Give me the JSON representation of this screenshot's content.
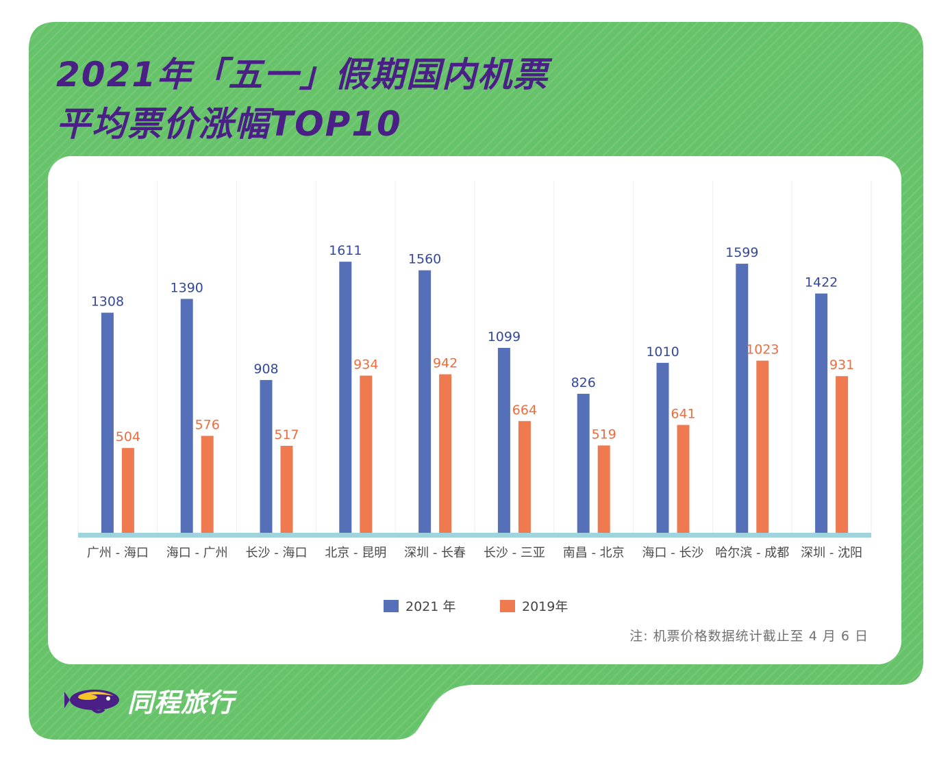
{
  "title": {
    "line1": "2021年「五一」假期国内机票",
    "line2": "平均票价涨幅TOP10"
  },
  "note": "注:  机票价格数据统计截止至 4 月 6 日",
  "brand": {
    "name": "同程旅行",
    "icon": "fish-logo-icon"
  },
  "colors": {
    "background": "#67c36a",
    "title": "#4a1f86",
    "series_2021": "#5570b8",
    "series_2019": "#f07a50",
    "label_2021": "#34489a",
    "label_2019": "#ee6c3e",
    "baseline": "#9fd3de"
  },
  "chart_data": {
    "type": "bar",
    "categories": [
      "广州 - 海口",
      "海口 - 广州",
      "长沙 - 海口",
      "北京 - 昆明",
      "深圳 - 长春",
      "长沙 - 三亚",
      "南昌 - 北京",
      "海口 - 长沙",
      "哈尔滨 - 成都",
      "深圳 - 沈阳"
    ],
    "series": [
      {
        "name": "2021 年",
        "values": [
          1308,
          1390,
          908,
          1611,
          1560,
          1099,
          826,
          1010,
          1599,
          1422
        ]
      },
      {
        "name": "2019年",
        "values": [
          504,
          576,
          517,
          934,
          942,
          664,
          519,
          641,
          1023,
          931
        ]
      }
    ],
    "ylim": [
      0,
      1750
    ],
    "grid": "vertical separators",
    "legend": "bottom-center"
  }
}
